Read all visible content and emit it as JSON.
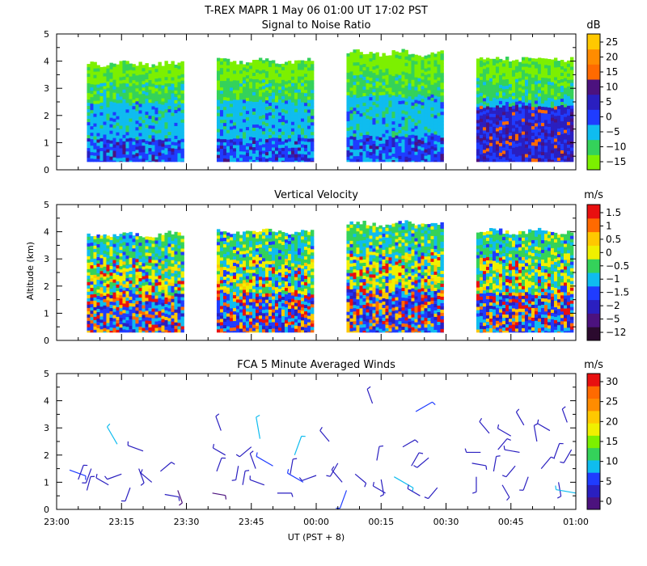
{
  "figure": {
    "title": "T-REX   MAPR   1 May 06   01:00 UT   17:02   PST",
    "xlabel": "UT  (PST + 8)",
    "ylabel": "Altitude (km)"
  },
  "chart_data": [
    {
      "type": "heatmap",
      "title": "Signal to Noise Ratio",
      "units": "dB",
      "x_ticklabels": [
        "23:00",
        "23:15",
        "23:30",
        "23:45",
        "00:00",
        "00:15",
        "00:30",
        "00:45",
        "01:00"
      ],
      "ylim": [
        0,
        5
      ],
      "y_ticklabels": [
        "0",
        "1",
        "2",
        "3",
        "4",
        "5"
      ],
      "colorbar_labels": [
        "25",
        "20",
        "15",
        "10",
        "5",
        "0",
        "−5",
        "−10",
        "−15"
      ],
      "colorbar_colors": [
        "#7cf000",
        "#34d25a",
        "#0fbcef",
        "#1f3cff",
        "#2a1fc0",
        "#4c127e",
        "#ff6a00",
        "#ff8c00",
        "#ffc800"
      ],
      "data_segments": [
        {
          "start": "23:07",
          "end": "23:29",
          "top_km": 3.9
        },
        {
          "start": "23:37",
          "end": "23:59",
          "top_km": 4.0
        },
        {
          "start": "00:07",
          "end": "00:29",
          "top_km": 4.3
        },
        {
          "start": "00:37",
          "end": "00:59",
          "top_km": 4.1
        }
      ],
      "field_bottom_km": 0.3
    },
    {
      "type": "heatmap",
      "title": "Vertical Velocity",
      "units": "m/s",
      "x_ticklabels": [
        "23:00",
        "23:15",
        "23:30",
        "23:45",
        "00:00",
        "00:15",
        "00:30",
        "00:45",
        "01:00"
      ],
      "ylim": [
        0,
        5
      ],
      "y_ticklabels": [
        "0",
        "1",
        "2",
        "3",
        "4",
        "5"
      ],
      "colorbar_labels": [
        "1.5",
        "1",
        "0.5",
        "0",
        "−0.5",
        "−1",
        "−1.5",
        "−2",
        "−5",
        "−12"
      ],
      "colorbar_colors": [
        "#2b0a2e",
        "#4c127e",
        "#2a1fc0",
        "#1f3cff",
        "#0fbcef",
        "#34d25a",
        "#f0f000",
        "#ffc800",
        "#ff6a00",
        "#e81010"
      ],
      "data_segments": [
        {
          "start": "23:07",
          "end": "23:29",
          "top_km": 3.9
        },
        {
          "start": "23:37",
          "end": "23:59",
          "top_km": 4.0
        },
        {
          "start": "00:07",
          "end": "00:29",
          "top_km": 4.3
        },
        {
          "start": "00:37",
          "end": "00:59",
          "top_km": 4.0
        }
      ],
      "field_bottom_km": 0.3
    },
    {
      "type": "scatter",
      "title": "FCA 5 Minute Averaged Winds",
      "units": "m/s",
      "x_ticklabels": [
        "23:00",
        "23:15",
        "23:30",
        "23:45",
        "00:00",
        "00:15",
        "00:30",
        "00:45",
        "01:00"
      ],
      "ylim": [
        0,
        5
      ],
      "y_ticklabels": [
        "0",
        "1",
        "2",
        "3",
        "4",
        "5"
      ],
      "colorbar_labels": [
        "30",
        "25",
        "20",
        "15",
        "10",
        "5",
        "0"
      ],
      "colorbar_colors": [
        "#4c127e",
        "#2a1fc0",
        "#1f3cff",
        "#0fbcef",
        "#34d25a",
        "#7cf000",
        "#f0f000",
        "#ffc800",
        "#ff8c00",
        "#ff6a00",
        "#e81010"
      ],
      "wind_barbs": [
        {
          "time": "23:03",
          "alt": 1.45,
          "dir": 110,
          "spd": 6
        },
        {
          "time": "23:05",
          "alt": 1.1,
          "dir": 20,
          "spd": 4
        },
        {
          "time": "23:07",
          "alt": 0.7,
          "dir": 15,
          "spd": 3
        },
        {
          "time": "23:08",
          "alt": 1.5,
          "dir": 200,
          "spd": 4
        },
        {
          "time": "23:12",
          "alt": 0.9,
          "dir": 300,
          "spd": 3
        },
        {
          "time": "23:14",
          "alt": 2.4,
          "dir": 330,
          "spd": 9
        },
        {
          "time": "23:15",
          "alt": 1.3,
          "dir": 250,
          "spd": 4
        },
        {
          "time": "23:17",
          "alt": 0.8,
          "dir": 200,
          "spd": 3
        },
        {
          "time": "23:19",
          "alt": 1.5,
          "dir": 160,
          "spd": 4
        },
        {
          "time": "23:20",
          "alt": 2.15,
          "dir": 290,
          "spd": 5
        },
        {
          "time": "23:22",
          "alt": 1.0,
          "dir": 310,
          "spd": 3
        },
        {
          "time": "23:24",
          "alt": 1.4,
          "dir": 50,
          "spd": 3
        },
        {
          "time": "23:25",
          "alt": 0.55,
          "dir": 100,
          "spd": 3
        },
        {
          "time": "23:28",
          "alt": 0.7,
          "dir": 160,
          "spd": 2
        },
        {
          "time": "23:36",
          "alt": 0.6,
          "dir": 100,
          "spd": 2
        },
        {
          "time": "23:37",
          "alt": 1.4,
          "dir": 20,
          "spd": 3
        },
        {
          "time": "23:38",
          "alt": 2.9,
          "dir": 340,
          "spd": 4
        },
        {
          "time": "23:39",
          "alt": 2.0,
          "dir": 300,
          "spd": 3
        },
        {
          "time": "23:42",
          "alt": 1.6,
          "dir": 190,
          "spd": 3
        },
        {
          "time": "23:43",
          "alt": 0.9,
          "dir": 10,
          "spd": 3
        },
        {
          "time": "23:45",
          "alt": 2.3,
          "dir": 230,
          "spd": 4
        },
        {
          "time": "23:46",
          "alt": 1.5,
          "dir": 340,
          "spd": 5
        },
        {
          "time": "23:47",
          "alt": 2.6,
          "dir": 350,
          "spd": 11
        },
        {
          "time": "23:48",
          "alt": 0.9,
          "dir": 290,
          "spd": 4
        },
        {
          "time": "23:50",
          "alt": 1.6,
          "dir": 300,
          "spd": 8
        },
        {
          "time": "23:51",
          "alt": 0.6,
          "dir": 90,
          "spd": 3
        },
        {
          "time": "23:54",
          "alt": 1.3,
          "dir": 10,
          "spd": 4
        },
        {
          "time": "23:55",
          "alt": 2.0,
          "dir": 20,
          "spd": 9
        },
        {
          "time": "23:57",
          "alt": 1.0,
          "dir": 300,
          "spd": 7
        },
        {
          "time": "00:00",
          "alt": 1.25,
          "dir": 250,
          "spd": 4
        },
        {
          "time": "00:03",
          "alt": 2.5,
          "dir": 320,
          "spd": 3
        },
        {
          "time": "00:05",
          "alt": 1.7,
          "dir": 210,
          "spd": 4
        },
        {
          "time": "00:06",
          "alt": 1.0,
          "dir": 320,
          "spd": 5
        },
        {
          "time": "00:07",
          "alt": 0.7,
          "dir": 200,
          "spd": 8
        },
        {
          "time": "00:09",
          "alt": 1.3,
          "dir": 130,
          "spd": 3
        },
        {
          "time": "00:13",
          "alt": 3.9,
          "dir": 340,
          "spd": 4
        },
        {
          "time": "00:14",
          "alt": 1.8,
          "dir": 10,
          "spd": 3
        },
        {
          "time": "00:15",
          "alt": 1.1,
          "dir": 170,
          "spd": 4
        },
        {
          "time": "00:16",
          "alt": 0.6,
          "dir": 300,
          "spd": 3
        },
        {
          "time": "00:18",
          "alt": 1.2,
          "dir": 120,
          "spd": 11
        },
        {
          "time": "00:20",
          "alt": 2.3,
          "dir": 60,
          "spd": 3
        },
        {
          "time": "00:22",
          "alt": 1.6,
          "dir": 30,
          "spd": 4
        },
        {
          "time": "00:23",
          "alt": 3.6,
          "dir": 60,
          "spd": 8
        },
        {
          "time": "00:24",
          "alt": 0.5,
          "dir": 300,
          "spd": 3
        },
        {
          "time": "00:26",
          "alt": 1.9,
          "dir": 230,
          "spd": 4
        },
        {
          "time": "00:28",
          "alt": 0.8,
          "dir": 220,
          "spd": 3
        },
        {
          "time": "00:36",
          "alt": 1.7,
          "dir": 100,
          "spd": 3
        },
        {
          "time": "00:37",
          "alt": 1.2,
          "dir": 180,
          "spd": 4
        },
        {
          "time": "00:38",
          "alt": 2.1,
          "dir": 270,
          "spd": 3
        },
        {
          "time": "00:40",
          "alt": 2.8,
          "dir": 320,
          "spd": 4
        },
        {
          "time": "00:41",
          "alt": 1.4,
          "dir": 10,
          "spd": 4
        },
        {
          "time": "00:42",
          "alt": 2.2,
          "dir": 40,
          "spd": 3
        },
        {
          "time": "00:43",
          "alt": 0.9,
          "dir": 150,
          "spd": 3
        },
        {
          "time": "00:45",
          "alt": 2.7,
          "dir": 300,
          "spd": 4
        },
        {
          "time": "00:46",
          "alt": 1.6,
          "dir": 220,
          "spd": 3
        },
        {
          "time": "00:47",
          "alt": 2.1,
          "dir": 280,
          "spd": 4
        },
        {
          "time": "00:48",
          "alt": 3.1,
          "dir": 330,
          "spd": 4
        },
        {
          "time": "00:49",
          "alt": 1.2,
          "dir": 200,
          "spd": 3
        },
        {
          "time": "00:51",
          "alt": 2.5,
          "dir": 350,
          "spd": 5
        },
        {
          "time": "00:52",
          "alt": 1.5,
          "dir": 40,
          "spd": 4
        },
        {
          "time": "00:54",
          "alt": 2.9,
          "dir": 300,
          "spd": 3
        },
        {
          "time": "00:55",
          "alt": 1.9,
          "dir": 20,
          "spd": 4
        },
        {
          "time": "00:56",
          "alt": 1.0,
          "dir": 170,
          "spd": 3
        },
        {
          "time": "00:58",
          "alt": 3.2,
          "dir": 340,
          "spd": 3
        },
        {
          "time": "00:59",
          "alt": 2.2,
          "dir": 210,
          "spd": 4
        },
        {
          "time": "01:00",
          "alt": 0.6,
          "dir": 280,
          "spd": 9
        }
      ]
    }
  ]
}
